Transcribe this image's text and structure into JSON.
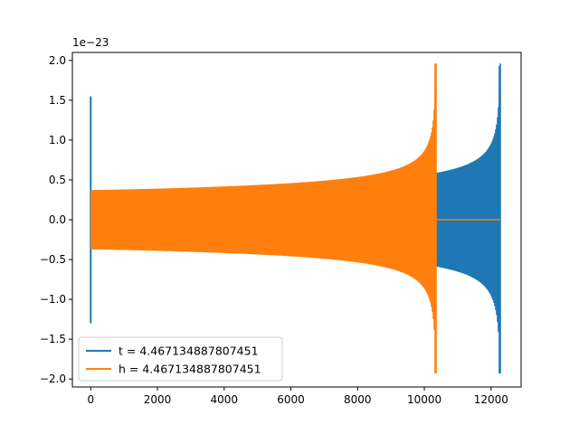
{
  "chart_data": {
    "type": "line",
    "title": "",
    "xlabel": "",
    "ylabel": "",
    "y_offset_label": "1e−23",
    "xlim": [
      -550,
      12900
    ],
    "ylim": [
      -2.1,
      2.1
    ],
    "x_ticks": [
      0,
      2000,
      4000,
      6000,
      8000,
      10000,
      12000
    ],
    "x_tick_labels": [
      "0",
      "2000",
      "4000",
      "6000",
      "8000",
      "10000",
      "12000"
    ],
    "y_ticks": [
      2.0,
      1.5,
      1.0,
      0.5,
      0.0,
      -0.5,
      -1.0,
      -1.5,
      -2.0
    ],
    "y_tick_labels": [
      "2.0",
      "1.5",
      "1.0",
      "0.5",
      "0.0",
      "−0.5",
      "−1.0",
      "−1.5",
      "−2.0"
    ],
    "grid": false,
    "legend_position": "lower-left",
    "series": [
      {
        "name": "t = 4.467134887807451",
        "color": "#1f77b4",
        "x_start": 0,
        "x_merger": 12280,
        "early_amplitude": 0.37,
        "late_amplitude": 0.56,
        "start_spike_max": 1.55,
        "start_spike_min": -1.3,
        "peak_max": 1.96,
        "peak_min": -1.93
      },
      {
        "name": "h = 4.467134887807451",
        "color": "#ff7f0e",
        "x_start": 0,
        "x_merger": 10350,
        "x_end": 12280,
        "early_amplitude": 0.37,
        "peak_max": 1.96,
        "peak_min": -1.93,
        "post_merger_value": 0.0
      }
    ]
  }
}
